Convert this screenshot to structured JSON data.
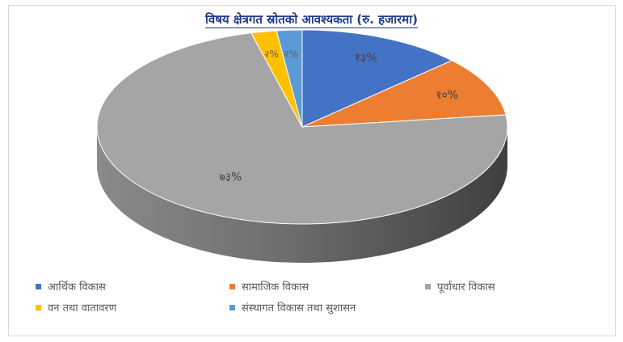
{
  "chart_data": {
    "type": "pie",
    "title": "विषय क्षेत्रगत स्रोतको आवश्यकता (रु. हजारमा)",
    "categories": [
      "आर्थिक विकास",
      "सामाजिक विकास",
      "पूर्वाधार विकास",
      "वन तथा वातावरण",
      "संस्थागत विकास तथा सुशासन"
    ],
    "values": [
      13,
      10,
      73,
      2,
      2
    ],
    "data_labels": [
      "१३%",
      "१०%",
      "७३%",
      "२%",
      "२%"
    ],
    "colors": [
      "#4472c4",
      "#ed7d31",
      "#a5a5a5",
      "#ffc000",
      "#5b9bd5"
    ],
    "style": "3d",
    "legend_position": "bottom"
  }
}
